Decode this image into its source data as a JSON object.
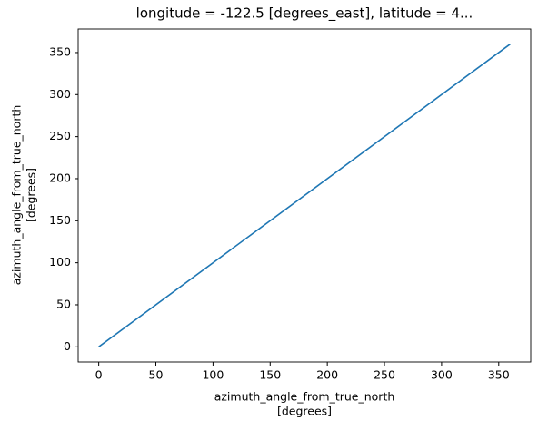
{
  "chart_data": {
    "type": "line",
    "title": "longitude = -122.5 [degrees_east], latitude = 4...",
    "xlabel": [
      "azimuth_angle_from_true_north",
      "[degrees]"
    ],
    "ylabel": [
      "azimuth_angle_from_true_north",
      "[degrees]"
    ],
    "x": [
      0,
      360
    ],
    "series": [
      {
        "color": "#1f77b4",
        "values": [
          0,
          360
        ]
      }
    ],
    "xlim": [
      -18,
      378
    ],
    "ylim": [
      -18,
      378
    ],
    "xticks": [
      0,
      50,
      100,
      150,
      200,
      250,
      300,
      350
    ],
    "yticks": [
      0,
      50,
      100,
      150,
      200,
      250,
      300,
      350
    ],
    "grid": false
  }
}
